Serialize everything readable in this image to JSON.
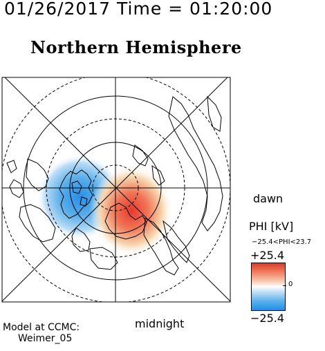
{
  "header": {
    "timestamp": "01/26/2017 Time = 01:20:00",
    "title": "Northern Hemisphere"
  },
  "plot": {
    "dawn_label": "dawn",
    "midnight_label": "midnight",
    "model_line1": "Model at CCMC:",
    "model_line2": "Weimer_05"
  },
  "colorbar": {
    "title": "PHI [kV]",
    "range_text": "−25.4<PHI<23.7",
    "max_label": "+25.4",
    "min_label": "−25.4",
    "mid_label": "0",
    "colors": {
      "positive": "#d93a2b",
      "zero": "#ffffff",
      "negative": "#1f8fe8"
    }
  }
}
